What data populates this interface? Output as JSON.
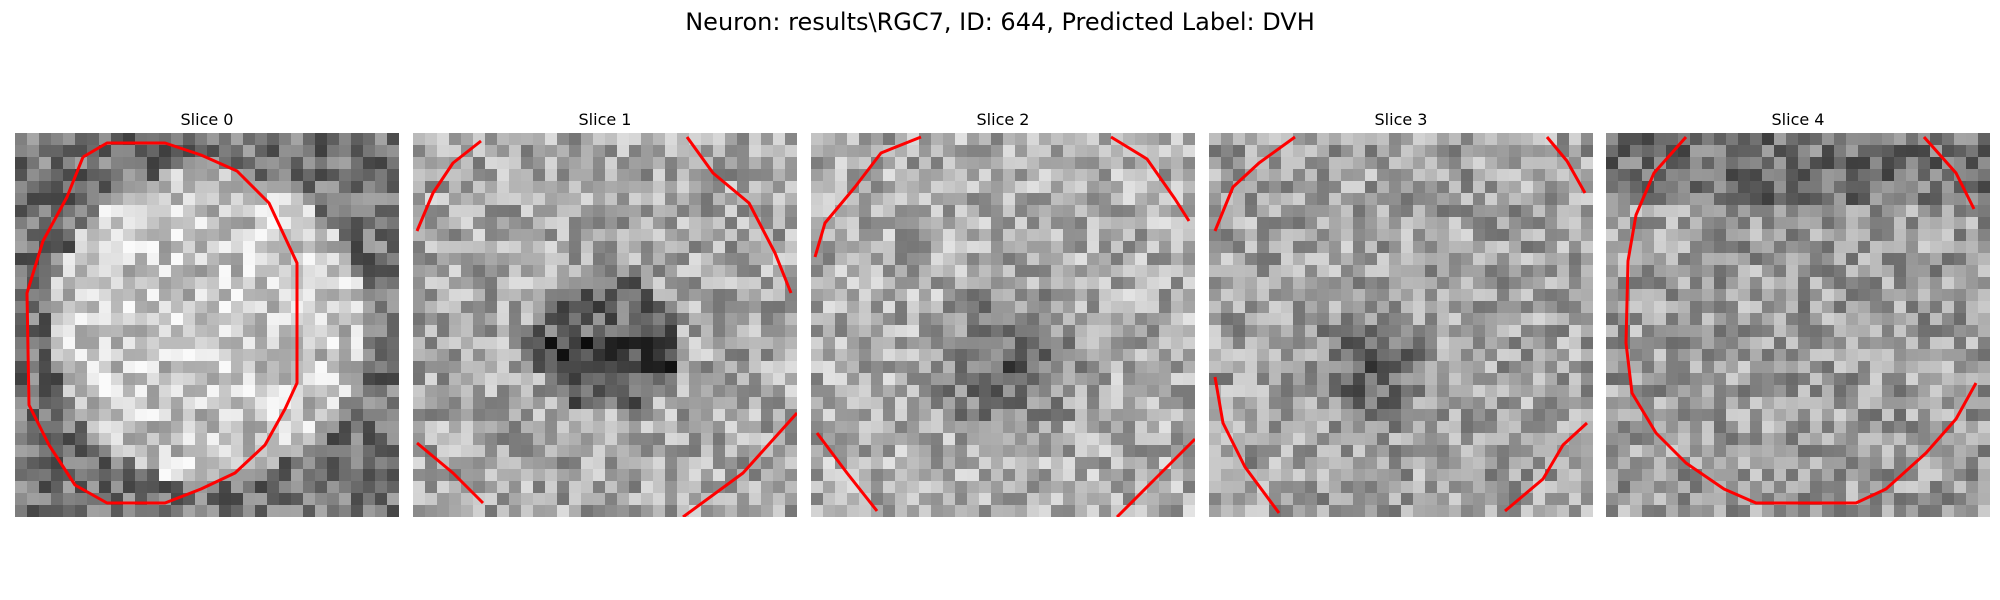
{
  "figure": {
    "title": "Neuron: results\\RGC7, ID: 644, Predicted Label: DVH"
  },
  "panels": [
    {
      "title": "Slice 0"
    },
    {
      "title": "Slice 1"
    },
    {
      "title": "Slice 2"
    },
    {
      "title": "Slice 3"
    },
    {
      "title": "Slice 4"
    }
  ],
  "colors": {
    "contour": "#ff0000",
    "background": "#ffffff"
  }
}
